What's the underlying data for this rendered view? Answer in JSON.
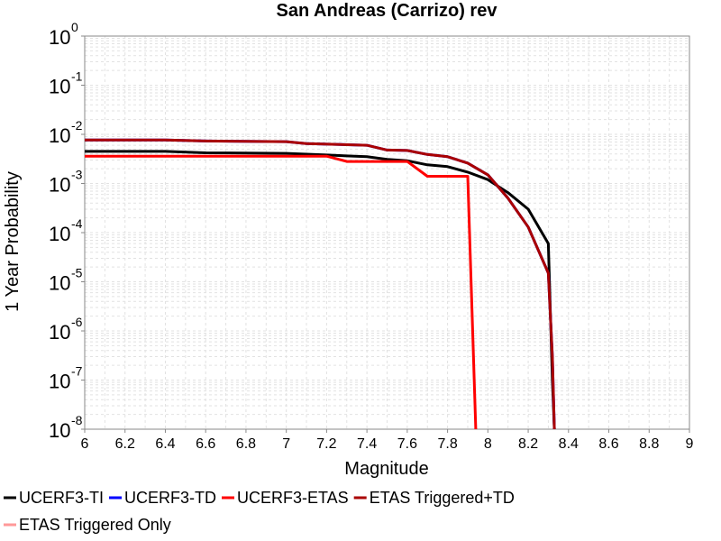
{
  "chart_data": {
    "type": "line",
    "title": "San Andreas (Carrizo) rev",
    "xlabel": "Magnitude",
    "ylabel": "1 Year Probability",
    "xlim": [
      6,
      9
    ],
    "ylim": [
      1e-08,
      1
    ],
    "yscale": "log",
    "grid": true,
    "legend_placement": "bottom",
    "x_ticks": [
      "6",
      "6.2",
      "6.4",
      "6.6",
      "6.8",
      "7",
      "7.2",
      "7.4",
      "7.6",
      "7.8",
      "8",
      "8.2",
      "8.4",
      "8.6",
      "8.8",
      "9"
    ],
    "y_ticks": [
      {
        "base": "10",
        "exp": "0"
      },
      {
        "base": "10",
        "exp": "-1"
      },
      {
        "base": "10",
        "exp": "-2"
      },
      {
        "base": "10",
        "exp": "-3"
      },
      {
        "base": "10",
        "exp": "-4"
      },
      {
        "base": "10",
        "exp": "-5"
      },
      {
        "base": "10",
        "exp": "-6"
      },
      {
        "base": "10",
        "exp": "-7"
      },
      {
        "base": "10",
        "exp": "-8"
      }
    ],
    "series": [
      {
        "name": "UCERF3-TI",
        "color": "#000000",
        "x": [
          6.0,
          6.4,
          6.6,
          7.0,
          7.2,
          7.4,
          7.5,
          7.6,
          7.7,
          7.8,
          7.9,
          8.0,
          8.1,
          8.2,
          8.3,
          8.32,
          8.33
        ],
        "y": [
          0.0045,
          0.0045,
          0.0042,
          0.0041,
          0.0038,
          0.0035,
          0.0031,
          0.0029,
          0.0024,
          0.0022,
          0.0017,
          0.0012,
          0.00065,
          0.0003,
          6e-05,
          1e-07,
          1e-08
        ]
      },
      {
        "name": "UCERF3-TD",
        "color": "#0000ff",
        "x": [
          6.0,
          6.4,
          6.6,
          7.0,
          7.1,
          7.4,
          7.5,
          7.6,
          7.7,
          7.8,
          7.9,
          8.0,
          8.1,
          8.2,
          8.3,
          8.32,
          8.33
        ],
        "y": [
          0.0077,
          0.0077,
          0.0073,
          0.0071,
          0.0065,
          0.006,
          0.0048,
          0.0047,
          0.0039,
          0.0035,
          0.0026,
          0.0015,
          0.0005,
          0.00013,
          1.5e-05,
          3e-07,
          1e-08
        ]
      },
      {
        "name": "UCERF3-ETAS",
        "color": "#ff0000",
        "x": [
          6.0,
          7.2,
          7.3,
          7.5,
          7.6,
          7.7,
          7.8,
          7.9,
          7.94
        ],
        "y": [
          0.0036,
          0.0036,
          0.0028,
          0.0028,
          0.0028,
          0.0014,
          0.0014,
          0.0014,
          1e-08
        ]
      },
      {
        "name": "ETAS Triggered+TD",
        "color": "#aa0000",
        "x": [
          6.0,
          6.4,
          6.6,
          7.0,
          7.1,
          7.4,
          7.5,
          7.6,
          7.7,
          7.8,
          7.9,
          8.0,
          8.1,
          8.2,
          8.3,
          8.32,
          8.33
        ],
        "y": [
          0.0077,
          0.0077,
          0.0073,
          0.0071,
          0.0065,
          0.006,
          0.0048,
          0.0047,
          0.0039,
          0.0035,
          0.0026,
          0.0015,
          0.0005,
          0.00013,
          1.5e-05,
          3e-07,
          1e-08
        ]
      },
      {
        "name": "ETAS Triggered Only",
        "color": "#ff9999",
        "x": [],
        "y": []
      }
    ]
  }
}
